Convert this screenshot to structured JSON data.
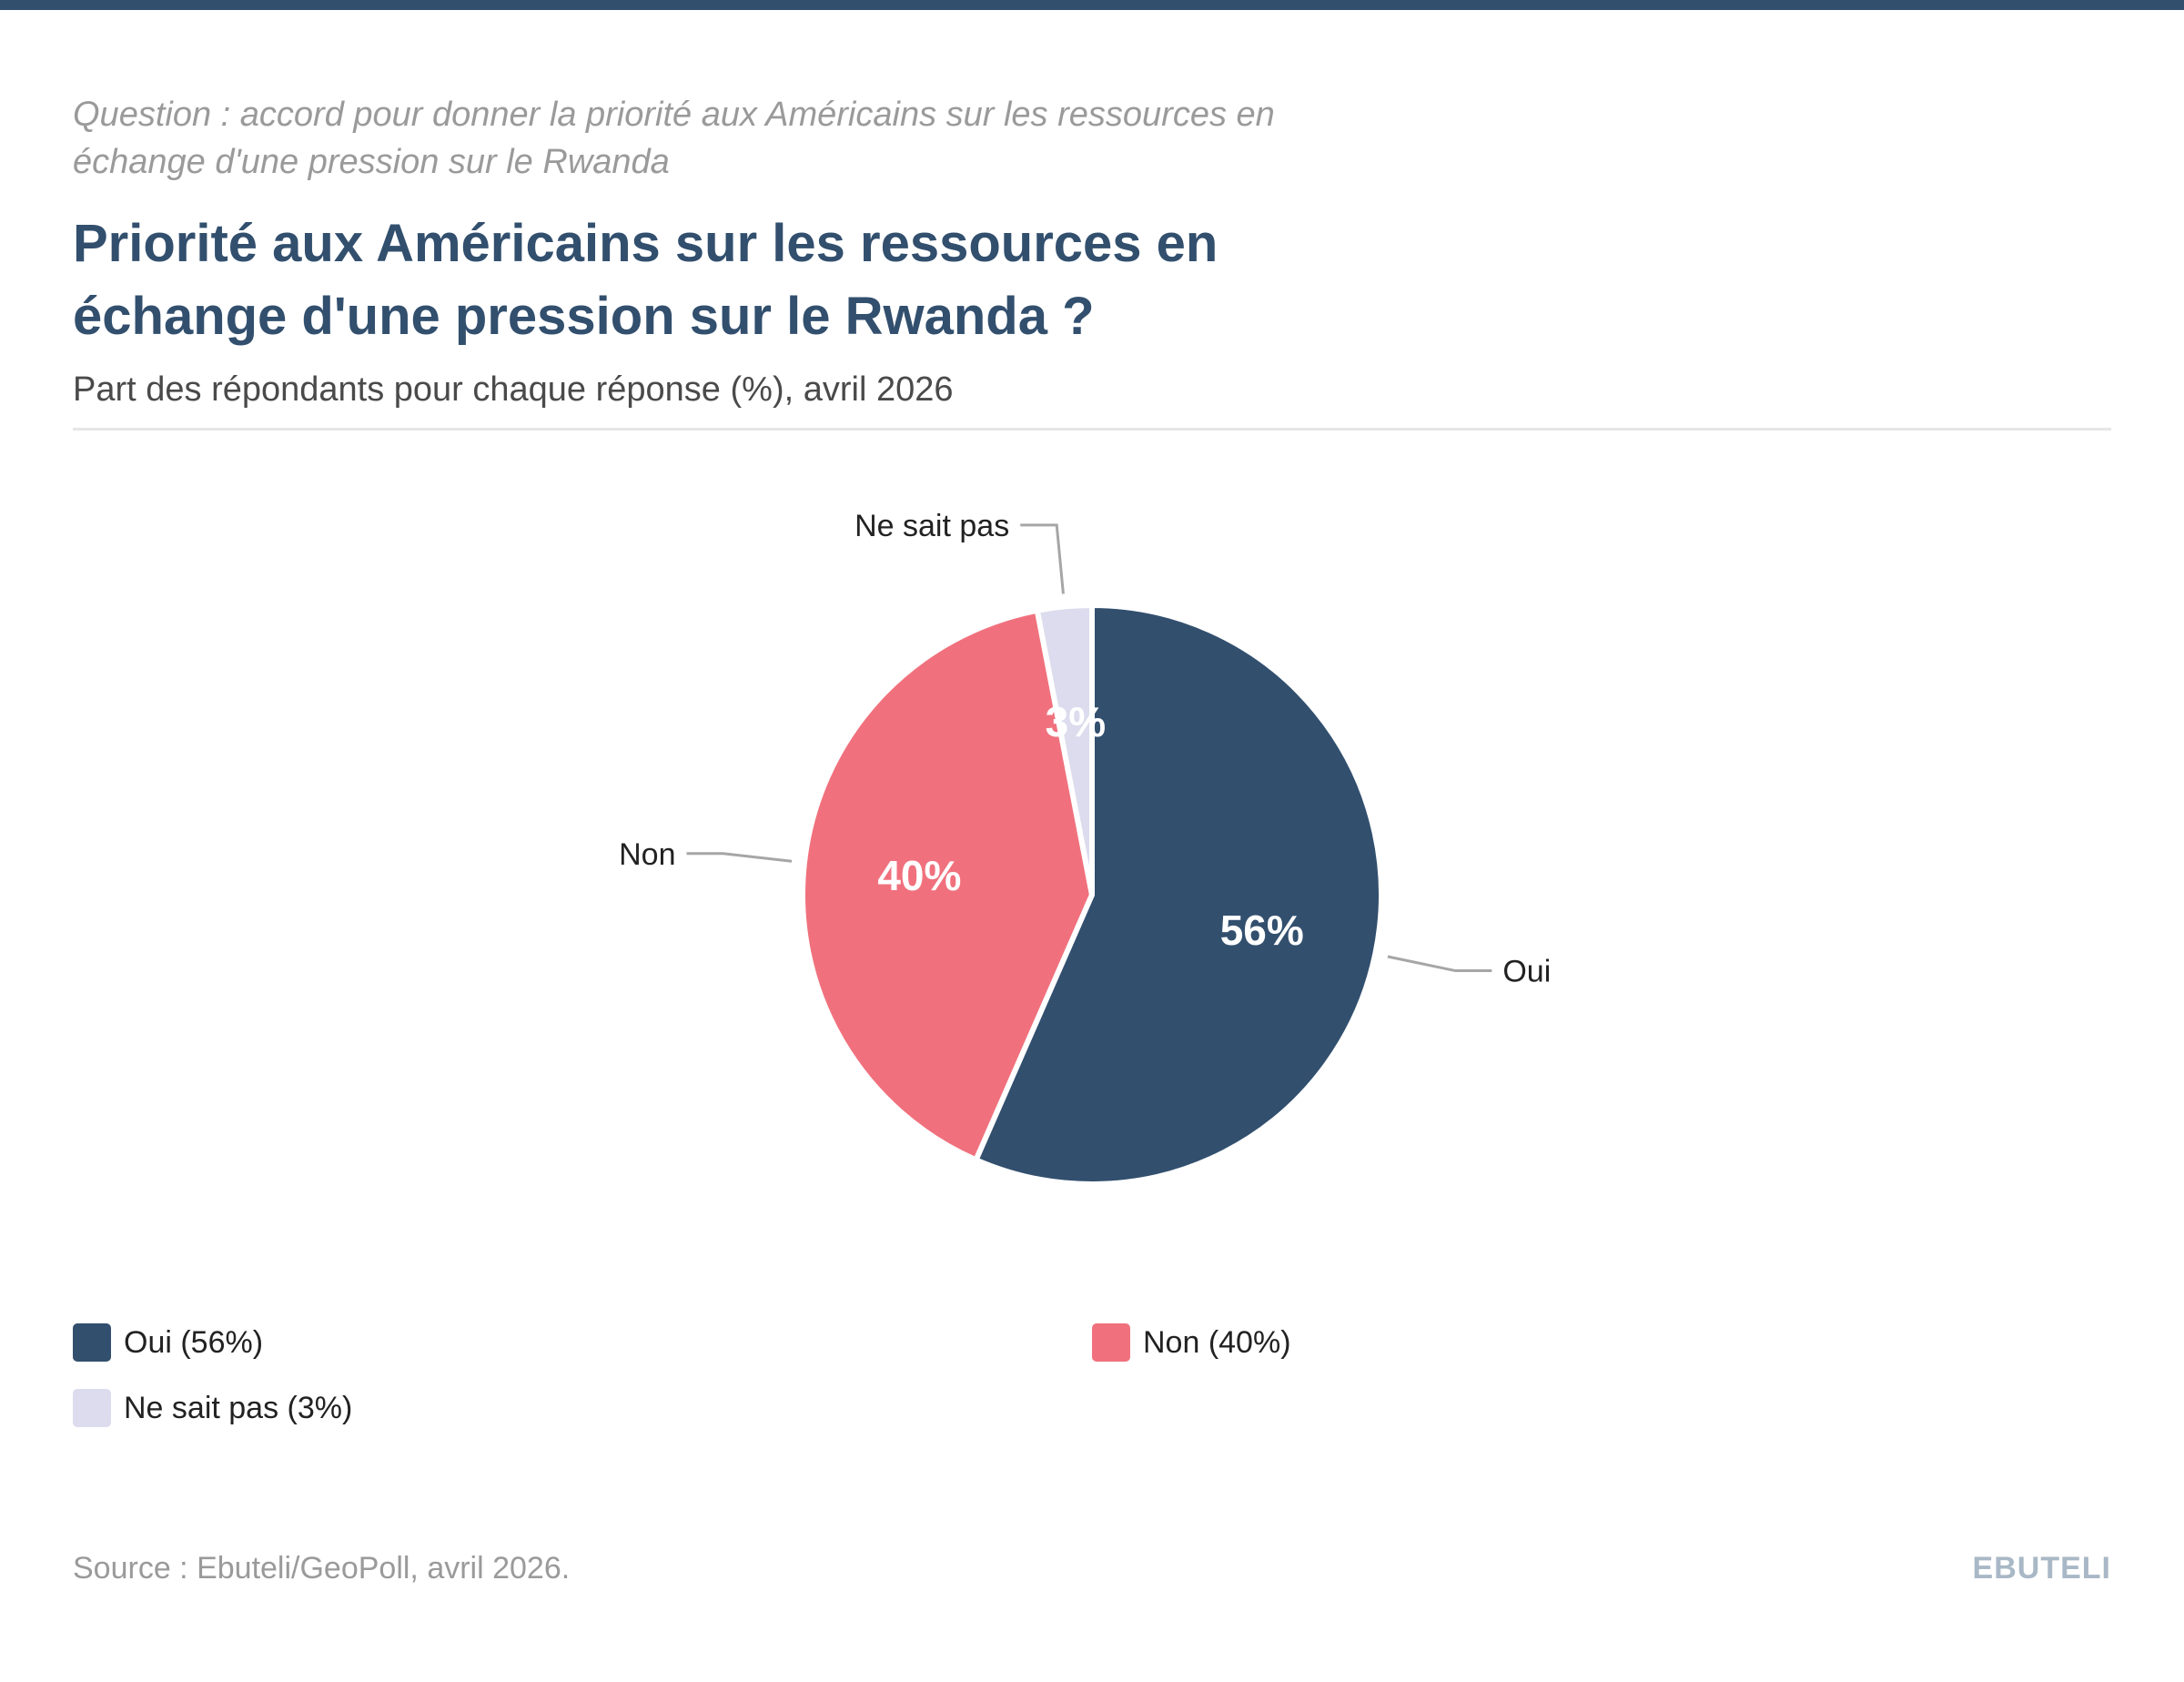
{
  "header": {
    "question": "Question : accord pour donner la priorité aux Américains sur les ressources en échange d'une pression sur le Rwanda",
    "title": "Priorité aux Américains sur les ressources en échange d'une pression sur le Rwanda ?",
    "subtitle": "Part des répondants pour chaque réponse (%), avril 2026"
  },
  "colors": {
    "top_bar": "#324f6e",
    "title": "#324f6e",
    "leader_line": "#a6a6a6",
    "slice_border": "#ffffff"
  },
  "chart_data": {
    "type": "pie",
    "title": "Priorité aux Américains sur les ressources en échange d'une pression sur le Rwanda ?",
    "subtitle": "Part des répondants pour chaque réponse (%), avril 2026",
    "unit": "%",
    "start_angle_deg": 0,
    "direction": "clockwise",
    "slices": [
      {
        "label": "Oui",
        "value": 56,
        "value_label": "56%",
        "legend": "Oui (56%)",
        "color": "#324f6e"
      },
      {
        "label": "Non",
        "value": 40,
        "value_label": "40%",
        "legend": "Non (40%)",
        "color": "#f0717d"
      },
      {
        "label": "Ne sait pas",
        "value": 3,
        "value_label": "3%",
        "legend": "Ne sait pas (3%)",
        "color": "#dcdcee"
      }
    ],
    "legend_position": "bottom"
  },
  "footer": {
    "source": "Source : Ebuteli/GeoPoll, avril 2026.",
    "brand": "EBUTELI"
  }
}
